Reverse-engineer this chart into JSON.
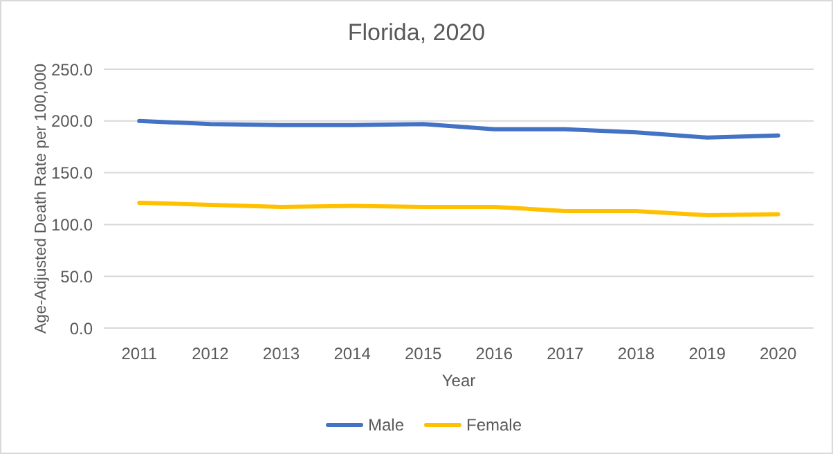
{
  "chart_data": {
    "type": "line",
    "title": "Florida, 2020",
    "xlabel": "Year",
    "ylabel": "Age-Adjusted Death Rate per 100,000",
    "categories": [
      "2011",
      "2012",
      "2013",
      "2014",
      "2015",
      "2016",
      "2017",
      "2018",
      "2019",
      "2020"
    ],
    "series": [
      {
        "name": "Male",
        "color": "#4472c4",
        "values": [
          200,
          197,
          196,
          196,
          197,
          192,
          192,
          189,
          184,
          186
        ]
      },
      {
        "name": "Female",
        "color": "#ffc000",
        "values": [
          121,
          119,
          117,
          118,
          117,
          117,
          113,
          113,
          109,
          110
        ]
      }
    ],
    "ylim": [
      0,
      250
    ],
    "yticks": [
      {
        "value": 0,
        "label": "0.0"
      },
      {
        "value": 50,
        "label": "50.0"
      },
      {
        "value": 100,
        "label": "100.0"
      },
      {
        "value": 150,
        "label": "150.0"
      },
      {
        "value": 200,
        "label": "200.0"
      },
      {
        "value": 250,
        "label": "250.0"
      }
    ],
    "grid": "y",
    "legend": "bottom",
    "line_style": "solid"
  }
}
